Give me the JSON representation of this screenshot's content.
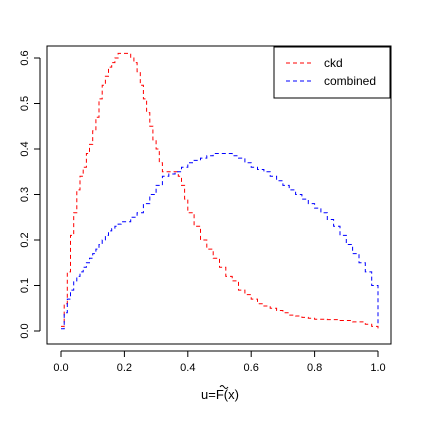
{
  "chart_data": {
    "type": "line",
    "step": true,
    "xlabel_prefix": "u=",
    "xlabel_symbol": "F",
    "xlabel_suffix": "(x)",
    "xlim": [
      0,
      1
    ],
    "ylim": [
      0,
      0.62
    ],
    "xticks": [
      0.0,
      0.2,
      0.4,
      0.6,
      0.8,
      1.0
    ],
    "xtick_labels": [
      "0.0",
      "0.2",
      "0.4",
      "0.6",
      "0.8",
      "1.0"
    ],
    "yticks": [
      0.0,
      0.1,
      0.2,
      0.3,
      0.4,
      0.5,
      0.6
    ],
    "ytick_labels": [
      "0.0",
      "0.1",
      "0.2",
      "0.3",
      "0.4",
      "0.5",
      "0.6"
    ],
    "legend_position": "top-right",
    "series": [
      {
        "name": "ckd",
        "color": "#ff0000",
        "x": [
          0.0,
          0.01,
          0.02,
          0.03,
          0.04,
          0.05,
          0.06,
          0.07,
          0.08,
          0.09,
          0.1,
          0.11,
          0.12,
          0.13,
          0.14,
          0.15,
          0.16,
          0.17,
          0.18,
          0.19,
          0.2,
          0.21,
          0.22,
          0.23,
          0.24,
          0.25,
          0.26,
          0.27,
          0.28,
          0.29,
          0.3,
          0.31,
          0.32,
          0.33,
          0.34,
          0.35,
          0.36,
          0.37,
          0.38,
          0.39,
          0.4,
          0.42,
          0.44,
          0.46,
          0.48,
          0.5,
          0.52,
          0.54,
          0.56,
          0.58,
          0.6,
          0.62,
          0.64,
          0.66,
          0.68,
          0.7,
          0.72,
          0.74,
          0.76,
          0.78,
          0.8,
          0.84,
          0.88,
          0.92,
          0.96,
          0.98,
          1.0
        ],
        "y": [
          0.01,
          0.06,
          0.13,
          0.21,
          0.26,
          0.31,
          0.34,
          0.36,
          0.39,
          0.41,
          0.44,
          0.47,
          0.51,
          0.54,
          0.56,
          0.58,
          0.59,
          0.6,
          0.61,
          0.61,
          0.61,
          0.61,
          0.6,
          0.59,
          0.57,
          0.54,
          0.51,
          0.48,
          0.45,
          0.42,
          0.4,
          0.37,
          0.35,
          0.35,
          0.35,
          0.35,
          0.35,
          0.34,
          0.32,
          0.29,
          0.26,
          0.23,
          0.2,
          0.18,
          0.16,
          0.14,
          0.12,
          0.11,
          0.09,
          0.08,
          0.07,
          0.06,
          0.055,
          0.05,
          0.045,
          0.04,
          0.035,
          0.033,
          0.03,
          0.028,
          0.026,
          0.025,
          0.023,
          0.02,
          0.015,
          0.01,
          0.005
        ]
      },
      {
        "name": "combined",
        "color": "#0000ff",
        "x": [
          0.0,
          0.01,
          0.02,
          0.03,
          0.04,
          0.05,
          0.06,
          0.07,
          0.08,
          0.09,
          0.1,
          0.11,
          0.12,
          0.13,
          0.14,
          0.15,
          0.16,
          0.17,
          0.18,
          0.19,
          0.2,
          0.22,
          0.24,
          0.26,
          0.28,
          0.3,
          0.32,
          0.34,
          0.36,
          0.38,
          0.4,
          0.42,
          0.44,
          0.46,
          0.48,
          0.5,
          0.52,
          0.54,
          0.56,
          0.58,
          0.6,
          0.62,
          0.64,
          0.66,
          0.68,
          0.7,
          0.72,
          0.74,
          0.76,
          0.78,
          0.8,
          0.82,
          0.84,
          0.86,
          0.88,
          0.9,
          0.92,
          0.94,
          0.96,
          0.98,
          1.0
        ],
        "y": [
          0.005,
          0.04,
          0.07,
          0.09,
          0.11,
          0.12,
          0.13,
          0.14,
          0.15,
          0.16,
          0.17,
          0.18,
          0.19,
          0.2,
          0.21,
          0.22,
          0.225,
          0.23,
          0.235,
          0.24,
          0.24,
          0.25,
          0.26,
          0.28,
          0.3,
          0.32,
          0.34,
          0.345,
          0.35,
          0.36,
          0.37,
          0.375,
          0.38,
          0.385,
          0.39,
          0.39,
          0.39,
          0.385,
          0.38,
          0.37,
          0.36,
          0.355,
          0.35,
          0.34,
          0.33,
          0.32,
          0.31,
          0.3,
          0.29,
          0.28,
          0.27,
          0.26,
          0.245,
          0.23,
          0.21,
          0.19,
          0.17,
          0.15,
          0.13,
          0.1,
          0.01
        ]
      }
    ]
  }
}
